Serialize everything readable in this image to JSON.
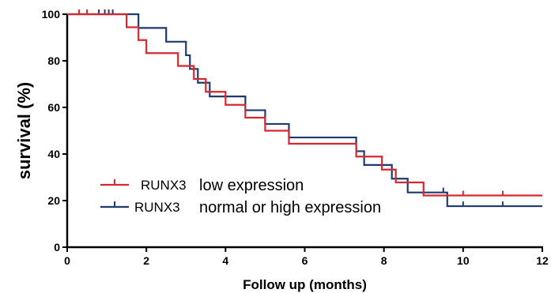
{
  "chart_data": {
    "type": "line",
    "subtype": "kaplan-meier",
    "xlabel": "Follow up (months)",
    "ylabel": "survival (%)",
    "xlim": [
      0,
      12
    ],
    "ylim": [
      0,
      100
    ],
    "xticks": [
      "0",
      "2",
      "4",
      "6",
      "8",
      "10",
      "12"
    ],
    "yticks": [
      "0",
      "20",
      "40",
      "60",
      "80",
      "100"
    ],
    "grid": false,
    "legend": {
      "placement": "lower-left"
    },
    "series": [
      {
        "name": "RUNX3",
        "name_suffix": "low expression",
        "color": "#d62830",
        "steps": [
          [
            0,
            100
          ],
          [
            1.5,
            94.4
          ],
          [
            1.8,
            88.9
          ],
          [
            2.0,
            83.3
          ],
          [
            2.8,
            77.8
          ],
          [
            3.2,
            72.2
          ],
          [
            3.5,
            66.7
          ],
          [
            4.0,
            61.1
          ],
          [
            4.5,
            55.6
          ],
          [
            5.0,
            50.0
          ],
          [
            5.6,
            44.4
          ],
          [
            7.3,
            38.9
          ],
          [
            7.95,
            33.3
          ],
          [
            8.3,
            27.8
          ],
          [
            9.0,
            22.2
          ],
          [
            12,
            22.2
          ]
        ],
        "censored": [
          [
            0.3,
            100
          ],
          [
            0.5,
            100
          ],
          [
            10.0,
            22.2
          ],
          [
            11.0,
            22.2
          ]
        ]
      },
      {
        "name": "RUNX3",
        "name_suffix": "normal or high expression",
        "color": "#1f3a6e",
        "steps": [
          [
            0,
            100
          ],
          [
            1.8,
            94.1
          ],
          [
            2.5,
            88.2
          ],
          [
            3.0,
            82.4
          ],
          [
            3.1,
            76.5
          ],
          [
            3.3,
            70.6
          ],
          [
            3.6,
            64.7
          ],
          [
            4.5,
            58.8
          ],
          [
            5.0,
            52.9
          ],
          [
            5.6,
            47.1
          ],
          [
            7.3,
            41.2
          ],
          [
            7.5,
            35.3
          ],
          [
            8.2,
            29.4
          ],
          [
            8.6,
            23.5
          ],
          [
            9.6,
            17.6
          ],
          [
            12,
            17.6
          ]
        ],
        "censored": [
          [
            0.8,
            100
          ],
          [
            0.95,
            100
          ],
          [
            1.05,
            100
          ],
          [
            1.15,
            100
          ],
          [
            9.5,
            23.5
          ],
          [
            10.0,
            17.6
          ],
          [
            11.0,
            17.6
          ]
        ]
      }
    ]
  }
}
